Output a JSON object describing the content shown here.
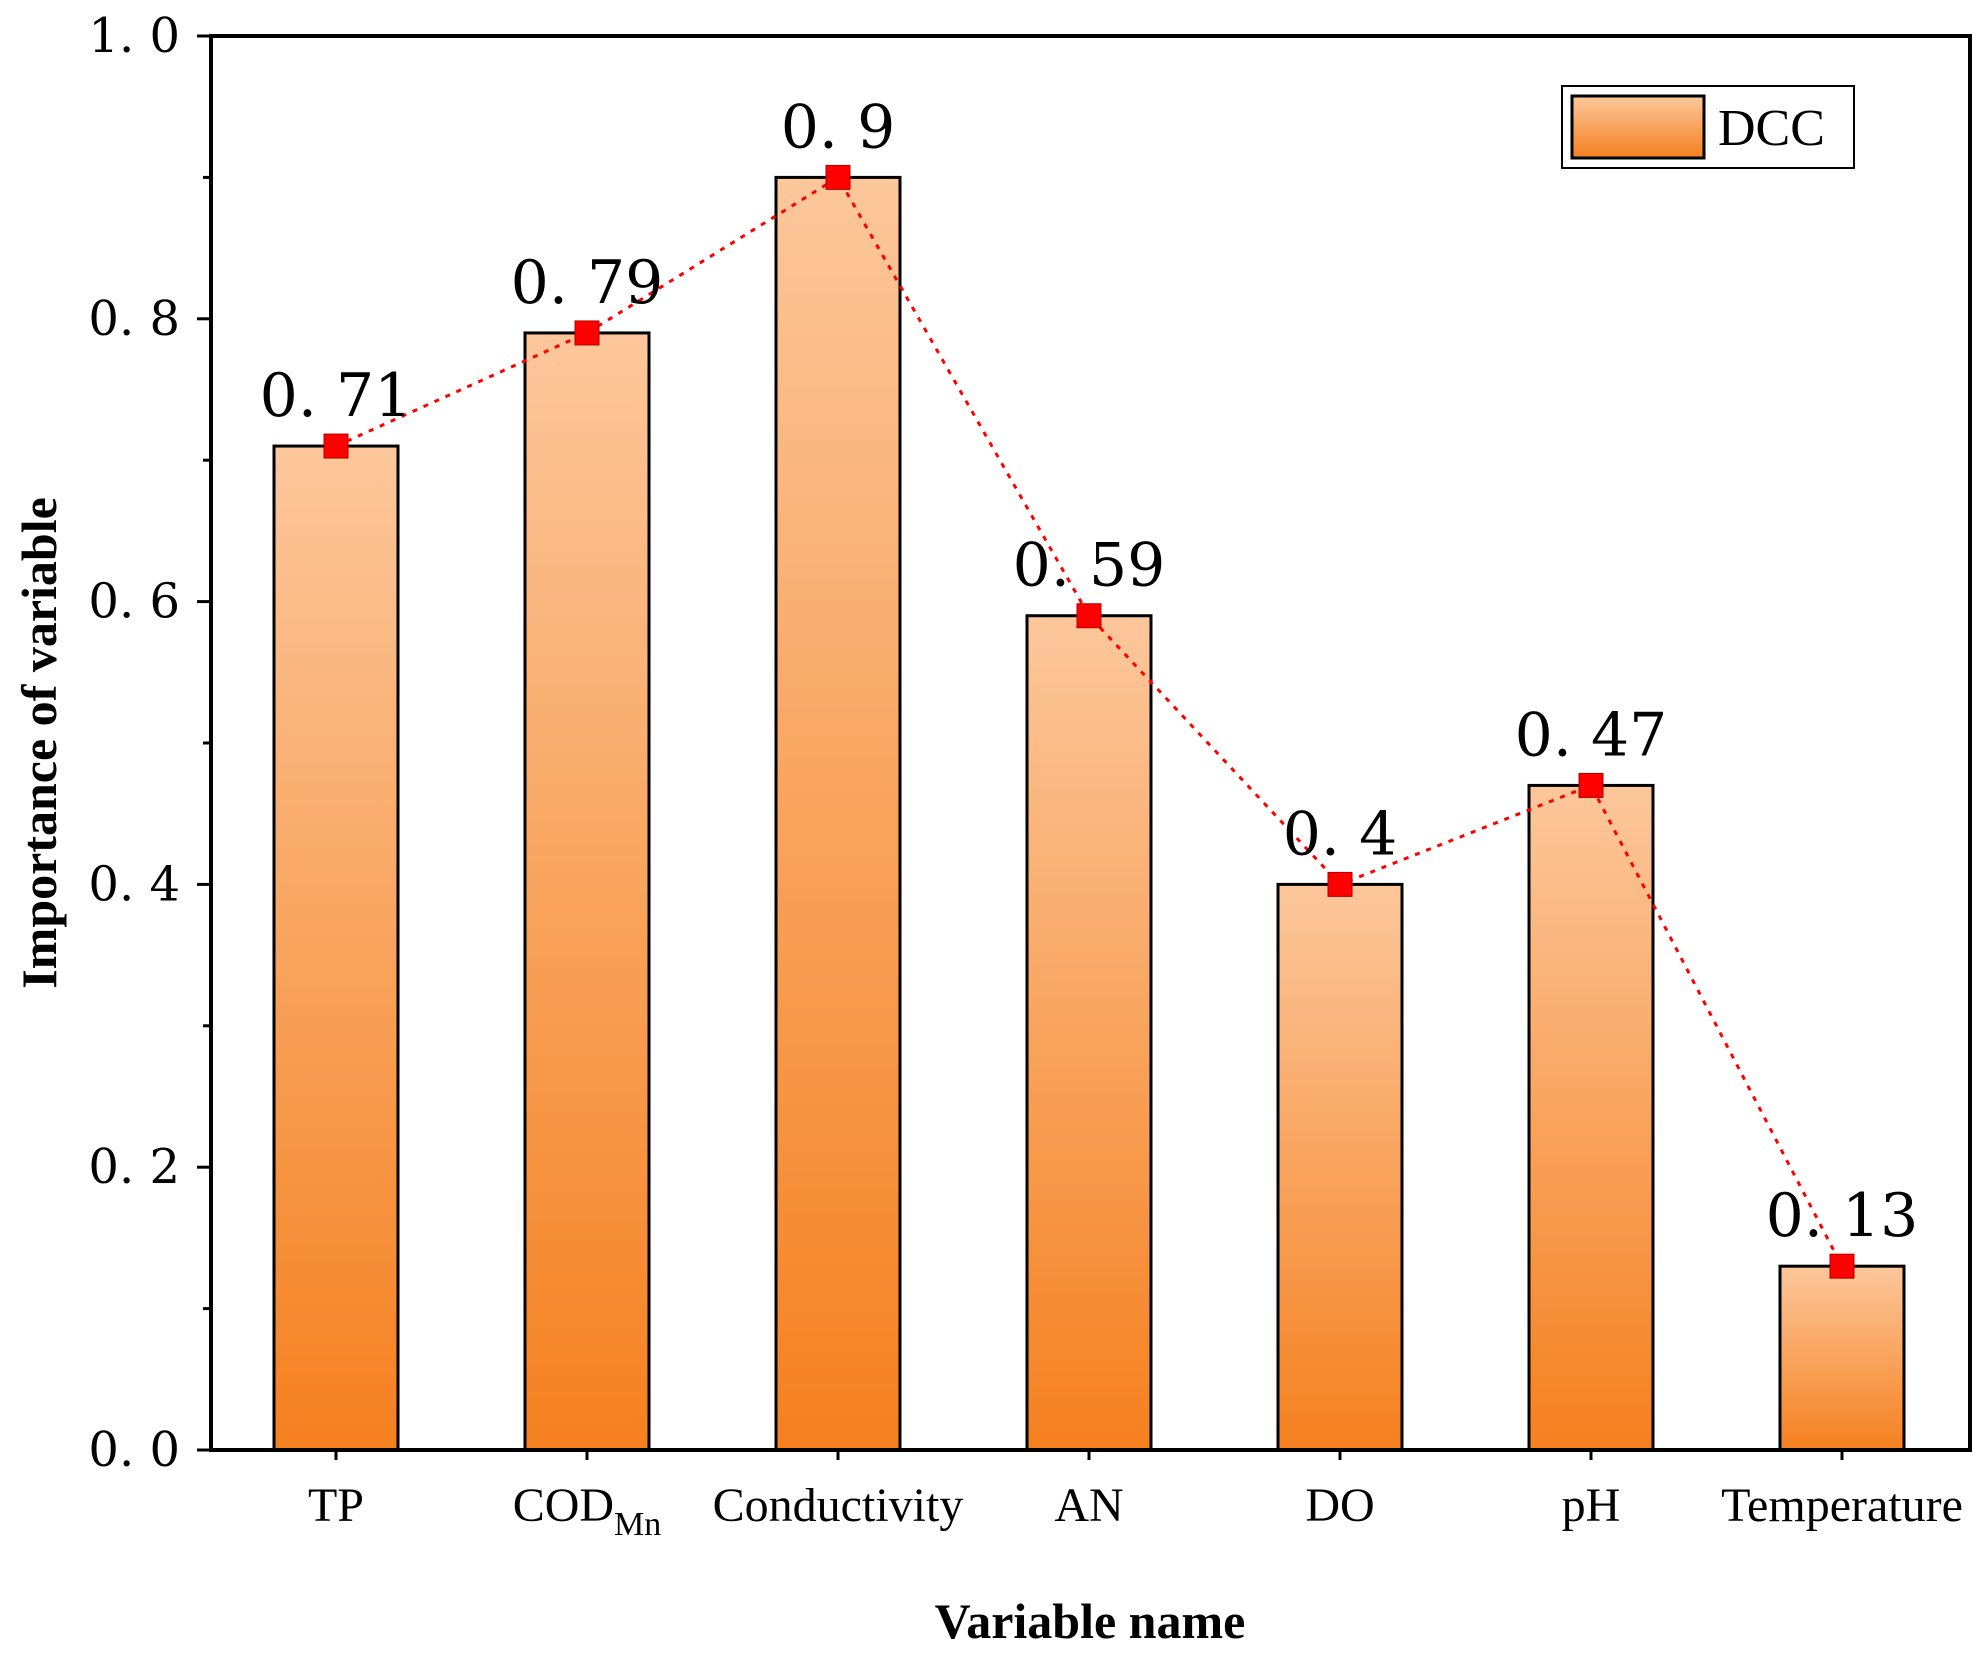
{
  "chart_data": {
    "type": "bar",
    "categories": [
      "TP",
      "COD",
      "Conductivity",
      "AN",
      "DO",
      "pH",
      "Temperature"
    ],
    "category_subscripts": [
      "",
      "Mn",
      "",
      "",
      "",
      "",
      ""
    ],
    "values": [
      0.71,
      0.79,
      0.9,
      0.59,
      0.4,
      0.47,
      0.13
    ],
    "data_labels": [
      "0. 71",
      "0. 79",
      "0. 9",
      "0. 59",
      "0. 4",
      "0. 47",
      "0. 13"
    ],
    "series": [
      {
        "name": "DCC",
        "values": [
          0.71,
          0.79,
          0.9,
          0.59,
          0.4,
          0.47,
          0.13
        ]
      }
    ],
    "overlay": {
      "type": "line",
      "style": "dotted",
      "marker": "square"
    },
    "xlabel": "Variable name",
    "ylabel": "Importance of variable",
    "ylim": [
      0,
      1.0
    ],
    "yticks": [
      0.0,
      0.2,
      0.4,
      0.6,
      0.8,
      1.0
    ],
    "ytick_labels": [
      "0. 0",
      "0. 2",
      "0. 4",
      "0. 6",
      "0. 8",
      "1. 0"
    ],
    "legend_position": "top-right",
    "grid": false,
    "colors": {
      "bar_top": "#fcc79b",
      "bar_bottom": "#f5801f",
      "marker": "#ff0000",
      "line": "#ff0000",
      "legend_swatch": "#f7903a"
    }
  }
}
